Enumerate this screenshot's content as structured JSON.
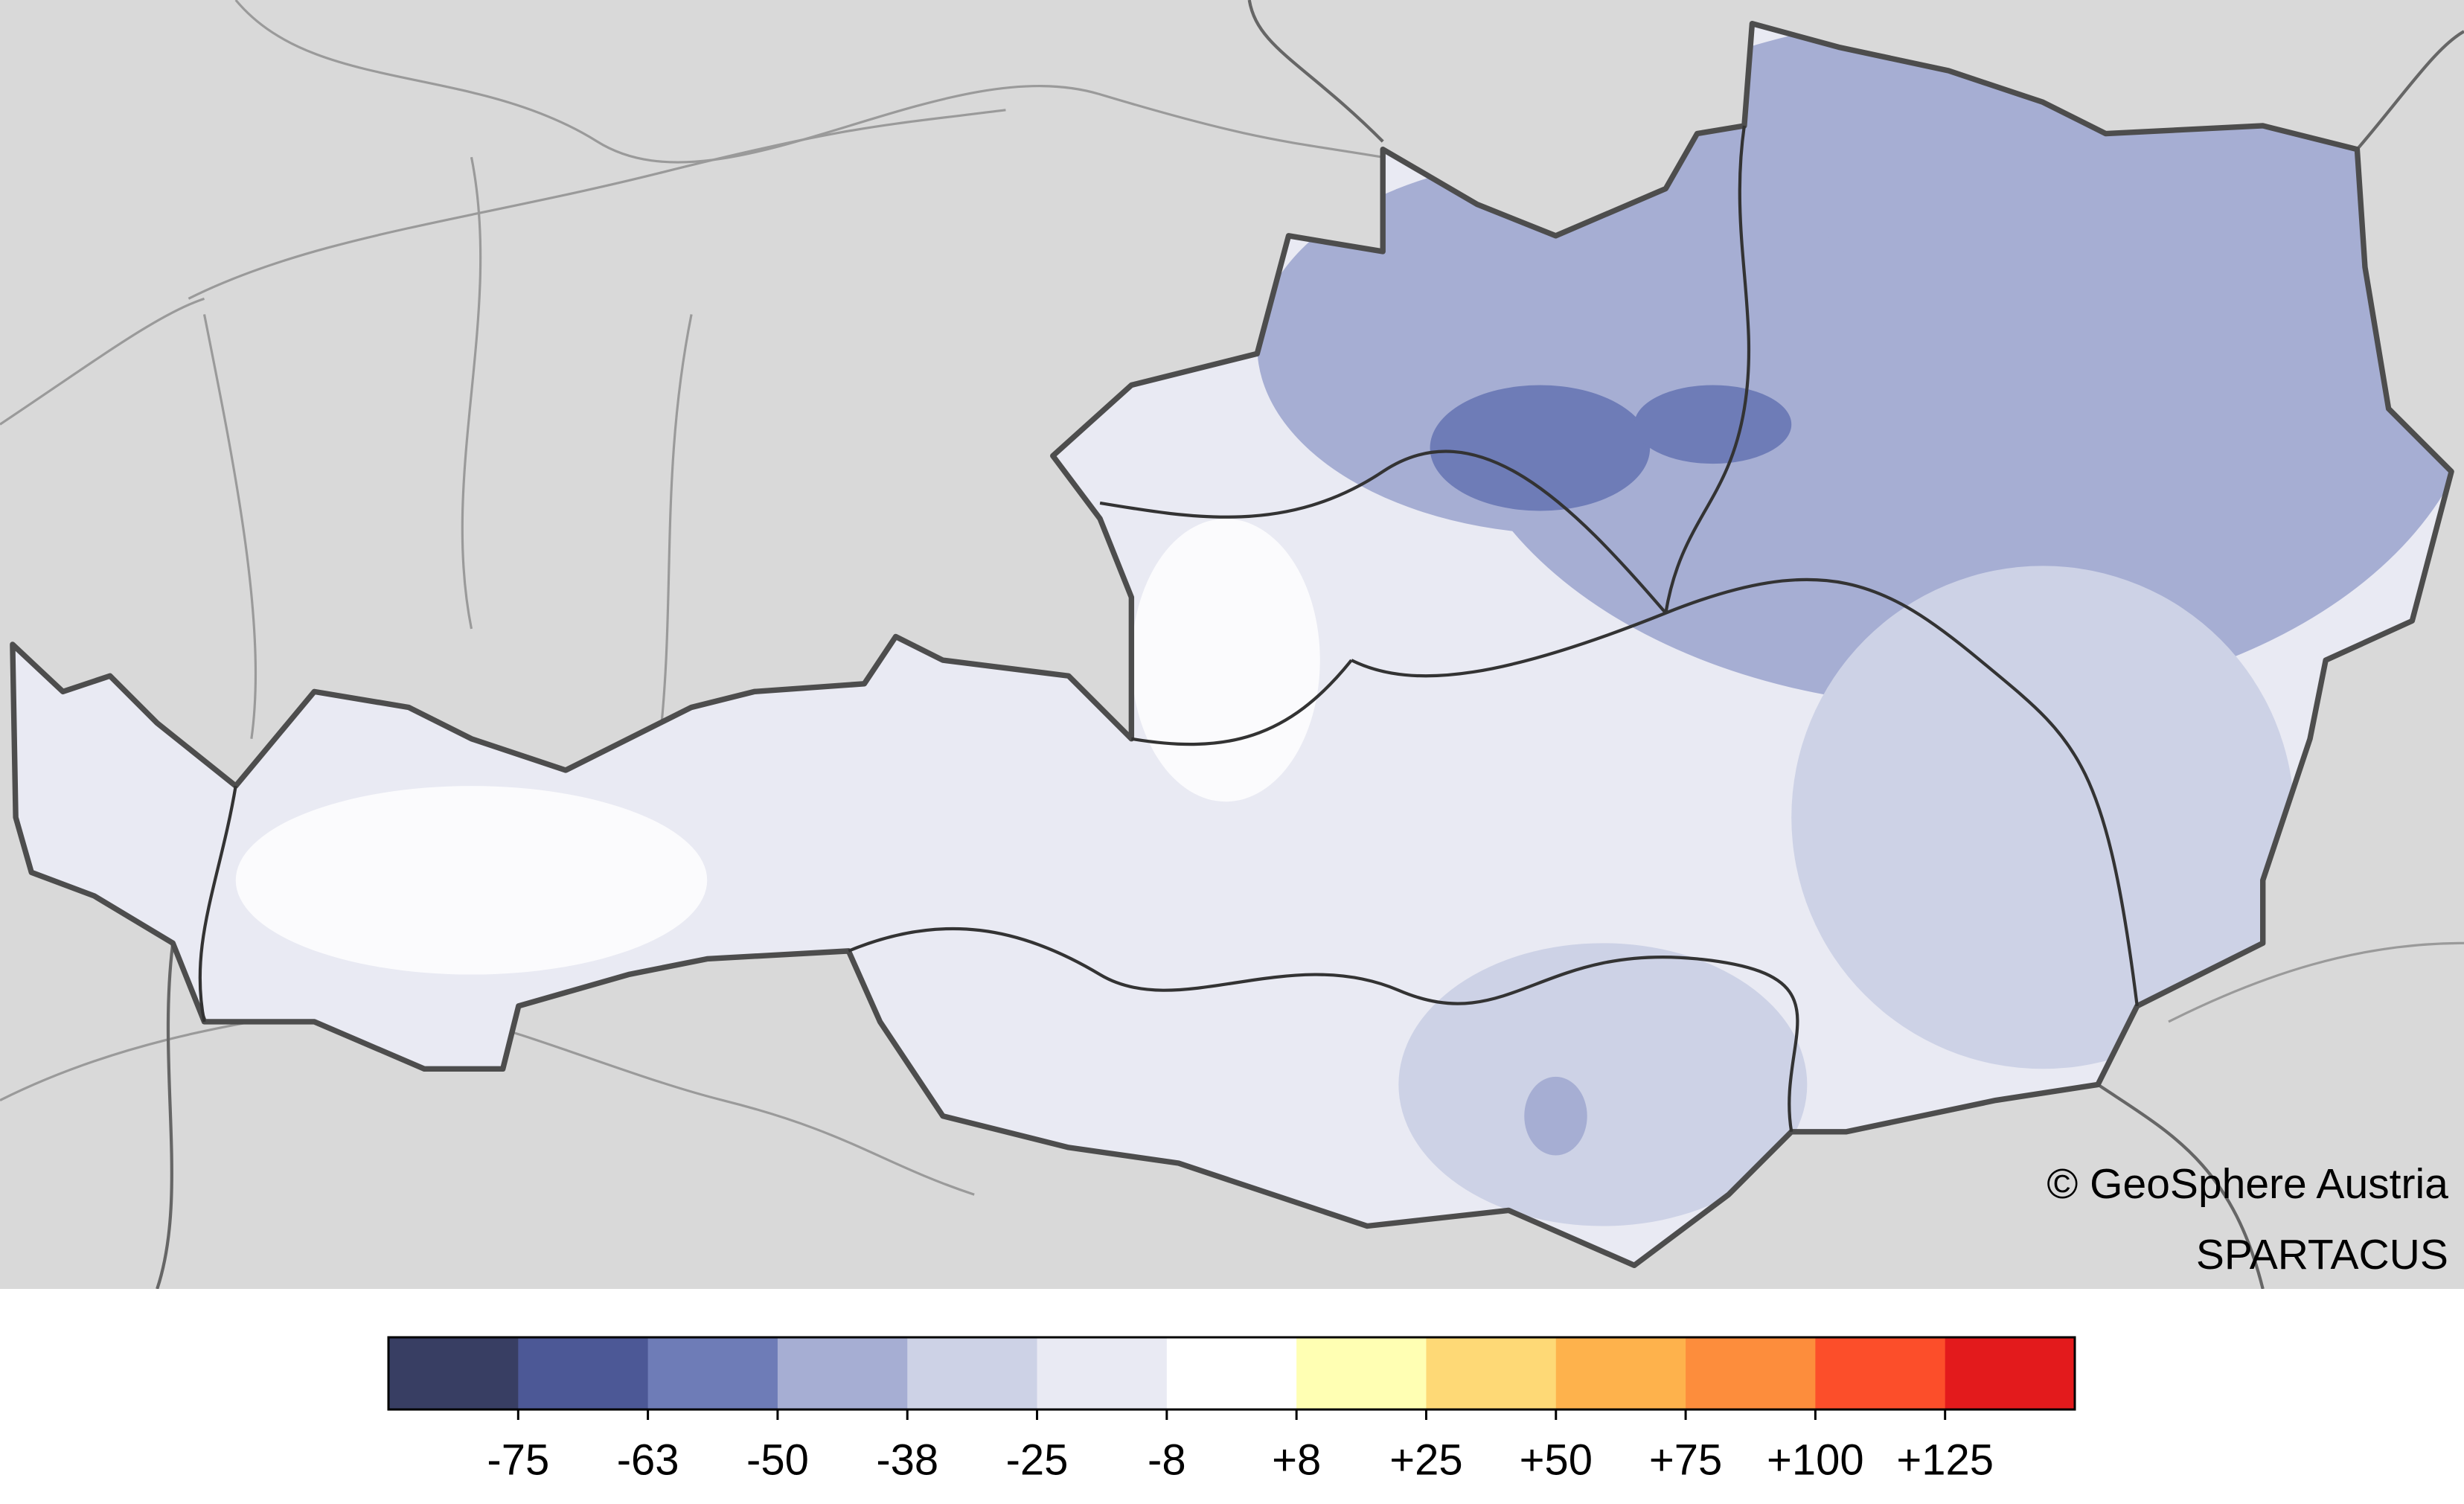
{
  "map": {
    "credits": [
      "© GeoSphere Austria",
      "SPARTACUS"
    ]
  },
  "legend": {
    "colors": [
      "#383e63",
      "#4c5896",
      "#6e7cb7",
      "#a6aed3",
      "#cdd2e6",
      "#e9eaf3",
      "#ffffff",
      "#ffffb3",
      "#fed976",
      "#feb24c",
      "#fd8d3c",
      "#fc4e2a",
      "#e31a1c"
    ],
    "ticks": [
      -75,
      -63,
      -50,
      -38,
      -25,
      -8,
      {
        "value": 8,
        "label": "+8"
      },
      {
        "value": 25,
        "label": "+25"
      },
      {
        "value": 50,
        "label": "+50"
      },
      {
        "value": 75,
        "label": "+75"
      },
      {
        "value": 100,
        "label": "+100"
      },
      {
        "value": 125,
        "label": "+125"
      }
    ]
  }
}
